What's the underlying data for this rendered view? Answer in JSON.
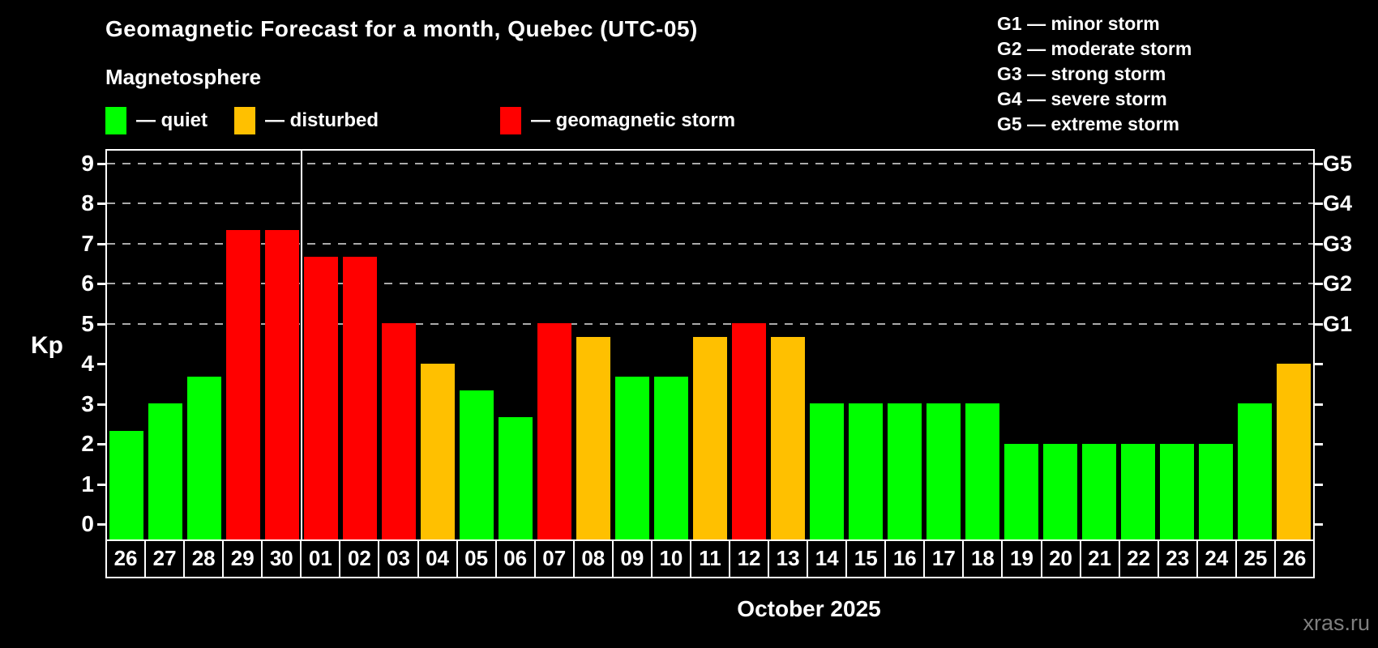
{
  "header": {
    "title": "Geomagnetic Forecast for a month, Quebec (UTC-05)",
    "subtitle": "Magnetosphere"
  },
  "legend": {
    "items": [
      {
        "key": "quiet",
        "label": "— quiet",
        "color": "#00ff00"
      },
      {
        "key": "disturbed",
        "label": "— disturbed",
        "color": "#ffc000"
      },
      {
        "key": "storm",
        "label": "— geomagnetic storm",
        "color": "#ff0000"
      }
    ]
  },
  "g_scale_legend": {
    "lines": [
      "G1 — minor storm",
      "G2 — moderate storm",
      "G3 — strong storm",
      "G4 — severe storm",
      "G5 — extreme storm"
    ]
  },
  "axis": {
    "ylabel": "Kp",
    "month_label": "October 2025"
  },
  "watermark": "xras.ru",
  "chart_data": {
    "type": "bar",
    "title": "Geomagnetic Forecast for a month, Quebec (UTC-05)",
    "subtitle": "Magnetosphere",
    "xlabel": "October 2025",
    "ylabel": "Kp",
    "ylim": [
      0,
      9.4
    ],
    "y_ticks": [
      0,
      1,
      2,
      3,
      4,
      5,
      6,
      7,
      8,
      9
    ],
    "gridlines_at": [
      5,
      6,
      7,
      8,
      9
    ],
    "grid_style": "dashed",
    "legend_position": "top",
    "right_axis_labels": [
      {
        "kp": 5,
        "label": "G1"
      },
      {
        "kp": 6,
        "label": "G2"
      },
      {
        "kp": 7,
        "label": "G3"
      },
      {
        "kp": 8,
        "label": "G4"
      },
      {
        "kp": 9,
        "label": "G5"
      }
    ],
    "month_boundary_after_index": 4,
    "categories": [
      "26",
      "27",
      "28",
      "29",
      "30",
      "01",
      "02",
      "03",
      "04",
      "05",
      "06",
      "07",
      "08",
      "09",
      "10",
      "11",
      "12",
      "13",
      "14",
      "15",
      "16",
      "17",
      "18",
      "19",
      "20",
      "21",
      "22",
      "23",
      "24",
      "25",
      "26"
    ],
    "values": [
      2.33,
      3.0,
      3.67,
      7.33,
      7.33,
      6.67,
      6.67,
      5.0,
      4.0,
      3.33,
      2.67,
      5.0,
      4.67,
      3.67,
      3.67,
      4.67,
      5.0,
      4.67,
      3.0,
      3.0,
      3.0,
      3.0,
      3.0,
      2.0,
      2.0,
      2.0,
      2.0,
      2.0,
      2.0,
      3.0,
      4.0
    ],
    "levels": [
      "quiet",
      "quiet",
      "quiet",
      "storm",
      "storm",
      "storm",
      "storm",
      "storm",
      "disturbed",
      "quiet",
      "quiet",
      "storm",
      "disturbed",
      "quiet",
      "quiet",
      "disturbed",
      "storm",
      "disturbed",
      "quiet",
      "quiet",
      "quiet",
      "quiet",
      "quiet",
      "quiet",
      "quiet",
      "quiet",
      "quiet",
      "quiet",
      "quiet",
      "quiet",
      "disturbed"
    ],
    "colors": {
      "quiet": "#00ff00",
      "disturbed": "#ffc000",
      "storm": "#ff0000"
    }
  }
}
